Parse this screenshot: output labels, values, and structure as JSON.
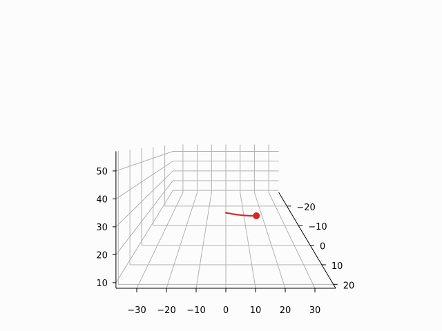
{
  "chart_data": {
    "type": "line",
    "projection": "3d",
    "title": "",
    "grid": true,
    "axes": {
      "x": {
        "label": "",
        "ticks": [
          -30,
          -20,
          -10,
          0,
          10,
          20,
          30
        ],
        "tick_labels": [
          "−30",
          "−20",
          "−10",
          "0",
          "10",
          "20",
          "30"
        ],
        "range": [
          -37,
          37
        ]
      },
      "y": {
        "label": "",
        "ticks": [
          -20,
          -10,
          0,
          10,
          20
        ],
        "tick_labels": [
          "−20",
          "−10",
          "0",
          "10",
          "20"
        ],
        "range": [
          -27,
          22
        ]
      },
      "z": {
        "label": "",
        "ticks": [
          10,
          20,
          30,
          40,
          50
        ],
        "tick_labels": [
          "10",
          "20",
          "30",
          "40",
          "50"
        ],
        "range": [
          8,
          57
        ]
      }
    },
    "series": [
      {
        "color": "#d62728",
        "points": [
          {
            "x": 0.0,
            "y": 0,
            "z": 24.4
          },
          {
            "x": 1.5,
            "y": 0,
            "z": 24.1
          },
          {
            "x": 3.0,
            "y": 0,
            "z": 23.8
          },
          {
            "x": 4.5,
            "y": 0,
            "z": 23.5
          },
          {
            "x": 6.0,
            "y": 0,
            "z": 23.3
          },
          {
            "x": 7.5,
            "y": 0,
            "z": 23.1
          },
          {
            "x": 9.0,
            "y": 0,
            "z": 23.0
          },
          {
            "x": 10.5,
            "y": 0,
            "z": 22.9
          },
          {
            "x": 12.0,
            "y": 0,
            "z": 22.9
          },
          {
            "x": 13.4,
            "y": 0,
            "z": 22.9
          }
        ],
        "end_marker": {
          "x": 13.4,
          "y": 0,
          "z": 22.9
        }
      }
    ]
  }
}
